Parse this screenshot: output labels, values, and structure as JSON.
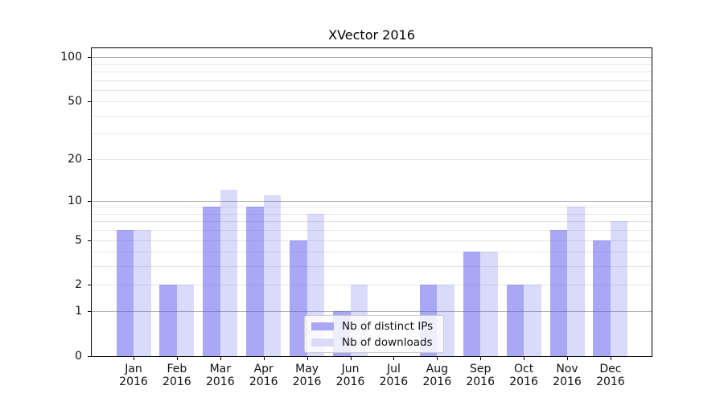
{
  "title": "XVector 2016",
  "chart_data": {
    "type": "bar",
    "title": "XVector 2016",
    "categories": [
      "Jan",
      "Feb",
      "Mar",
      "Apr",
      "May",
      "Jun",
      "Jul",
      "Aug",
      "Sep",
      "Oct",
      "Nov",
      "Dec"
    ],
    "category_year": "2016",
    "series": [
      {
        "name": "Nb of distinct IPs",
        "color": "rgba(81,81,233,0.50)",
        "legend_color": "#a8a8f4",
        "values": [
          6,
          2,
          9,
          9,
          5,
          1,
          0,
          2,
          4,
          2,
          6,
          5
        ]
      },
      {
        "name": "Nb of downloads",
        "color": "rgba(81,81,233,0.21)",
        "legend_color": "#dbdbf8",
        "values": [
          6,
          2,
          12,
          11,
          8,
          2,
          0,
          2,
          4,
          2,
          9,
          7
        ]
      }
    ],
    "xlabel": "",
    "ylabel": "",
    "yscale": "log1p",
    "ylim": [
      0,
      115
    ],
    "yticks_labeled": [
      0,
      1,
      2,
      5,
      10,
      20,
      50,
      100
    ],
    "ygrid_major": [
      1,
      10,
      100
    ],
    "ygrid_minor": [
      2,
      3,
      4,
      5,
      6,
      7,
      8,
      9,
      20,
      30,
      40,
      50,
      60,
      70,
      80,
      90
    ],
    "grid": true,
    "legend_position": "lower center"
  },
  "colors": {
    "bar_distinct_ips": "#a8a8f4",
    "bar_downloads": "#dbdbf8",
    "grid_major": "#b0b0b0",
    "grid_minor": "#e6e6e6",
    "axis": "#000000",
    "text": "#111111",
    "legend_border": "#cccccc",
    "legend_bg": "rgba(255,255,255,0.8)"
  }
}
